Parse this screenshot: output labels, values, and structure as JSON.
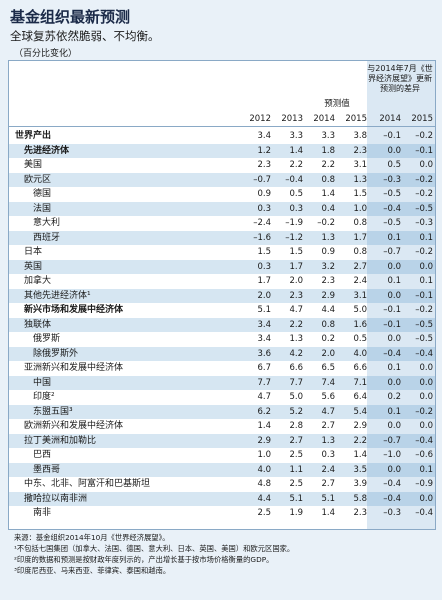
{
  "header": {
    "title": "基金组织最新预测",
    "subtitle": "全球复苏依然脆弱、不均衡。",
    "unit": "（百分比变化）"
  },
  "table": {
    "group_headers": {
      "forecast": "预测值",
      "difference": "与2014年7月《世界经济展望》更新预测的差异"
    },
    "years": [
      "2012",
      "2013",
      "2014",
      "2015",
      "2014",
      "2015"
    ],
    "rows": [
      [
        "世界产出",
        "3.4",
        "3.3",
        "3.3",
        "3.8",
        "–0.1",
        "–0.2"
      ],
      [
        "先进经济体",
        "1.2",
        "1.4",
        "1.8",
        "2.3",
        "0.0",
        "–0.1"
      ],
      [
        "美国",
        "2.3",
        "2.2",
        "2.2",
        "3.1",
        "0.5",
        "0.0"
      ],
      [
        "欧元区",
        "–0.7",
        "–0.4",
        "0.8",
        "1.3",
        "–0.3",
        "–0.2"
      ],
      [
        "德国",
        "0.9",
        "0.5",
        "1.4",
        "1.5",
        "–0.5",
        "–0.2"
      ],
      [
        "法国",
        "0.3",
        "0.3",
        "0.4",
        "1.0",
        "–0.4",
        "–0.5"
      ],
      [
        "意大利",
        "–2.4",
        "–1.9",
        "–0.2",
        "0.8",
        "–0.5",
        "–0.3"
      ],
      [
        "西班牙",
        "–1.6",
        "–1.2",
        "1.3",
        "1.7",
        "0.1",
        "0.1"
      ],
      [
        "日本",
        "1.5",
        "1.5",
        "0.9",
        "0.8",
        "–0.7",
        "–0.2"
      ],
      [
        "英国",
        "0.3",
        "1.7",
        "3.2",
        "2.7",
        "0.0",
        "0.0"
      ],
      [
        "加拿大",
        "1.7",
        "2.0",
        "2.3",
        "2.4",
        "0.1",
        "0.1"
      ],
      [
        "其他先进经济体¹",
        "2.0",
        "2.3",
        "2.9",
        "3.1",
        "0.0",
        "–0.1"
      ],
      [
        "新兴市场和发展中经济体",
        "5.1",
        "4.7",
        "4.4",
        "5.0",
        "–0.1",
        "–0.2"
      ],
      [
        "独联体",
        "3.4",
        "2.2",
        "0.8",
        "1.6",
        "–0.1",
        "–0.5"
      ],
      [
        "俄罗斯",
        "3.4",
        "1.3",
        "0.2",
        "0.5",
        "0.0",
        "–0.5"
      ],
      [
        "除俄罗斯外",
        "3.6",
        "4.2",
        "2.0",
        "4.0",
        "–0.4",
        "–0.4"
      ],
      [
        "亚洲新兴和发展中经济体",
        "6.7",
        "6.6",
        "6.5",
        "6.6",
        "0.1",
        "0.0"
      ],
      [
        "中国",
        "7.7",
        "7.7",
        "7.4",
        "7.1",
        "0.0",
        "0.0"
      ],
      [
        "印度²",
        "4.7",
        "5.0",
        "5.6",
        "6.4",
        "0.2",
        "0.0"
      ],
      [
        "东盟五国³",
        "6.2",
        "5.2",
        "4.7",
        "5.4",
        "0.1",
        "–0.2"
      ],
      [
        "欧洲新兴和发展中经济体",
        "1.4",
        "2.8",
        "2.7",
        "2.9",
        "0.0",
        "0.0"
      ],
      [
        "拉丁美洲和加勒比",
        "2.9",
        "2.7",
        "1.3",
        "2.2",
        "–0.7",
        "–0.4"
      ],
      [
        "巴西",
        "1.0",
        "2.5",
        "0.3",
        "1.4",
        "–1.0",
        "–0.6"
      ],
      [
        "墨西哥",
        "4.0",
        "1.1",
        "2.4",
        "3.5",
        "0.0",
        "0.1"
      ],
      [
        "中东、北非、阿富汗和巴基斯坦",
        "4.8",
        "2.5",
        "2.7",
        "3.9",
        "–0.4",
        "–0.9"
      ],
      [
        "撒哈拉以南非洲",
        "4.4",
        "5.1",
        "5.1",
        "5.8",
        "–0.4",
        "0.0"
      ],
      [
        "南非",
        "2.5",
        "1.9",
        "1.4",
        "2.3",
        "–0.3",
        "–0.4"
      ]
    ]
  },
  "notes": [
    "来源：基金组织2014年10月《世界经济展望》。",
    "¹不包括七国集团（加拿大、法国、德国、意大利、日本、英国、美国）和欧元区国家。",
    "²印度的数据和预测是按财政年度列示的，产出增长基于按市场价格衡量的GDP。",
    "³印度尼西亚、马来西亚、菲律宾、泰国和越南。"
  ]
}
